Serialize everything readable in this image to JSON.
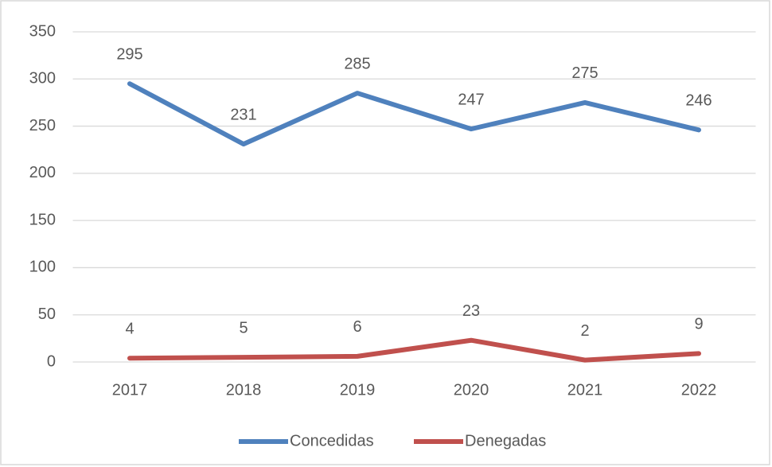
{
  "chart_data": {
    "type": "line",
    "categories": [
      "2017",
      "2018",
      "2019",
      "2020",
      "2021",
      "2022"
    ],
    "series": [
      {
        "name": "Concedidas",
        "color": "#4f81bd",
        "values": [
          295,
          231,
          285,
          247,
          275,
          246
        ]
      },
      {
        "name": "Denegadas",
        "color": "#c0504d",
        "values": [
          4,
          5,
          6,
          23,
          2,
          9
        ]
      }
    ],
    "ylim": [
      0,
      350
    ],
    "yticks": [
      0,
      50,
      100,
      150,
      200,
      250,
      300,
      350
    ],
    "grid": true,
    "legend": "bottom"
  }
}
